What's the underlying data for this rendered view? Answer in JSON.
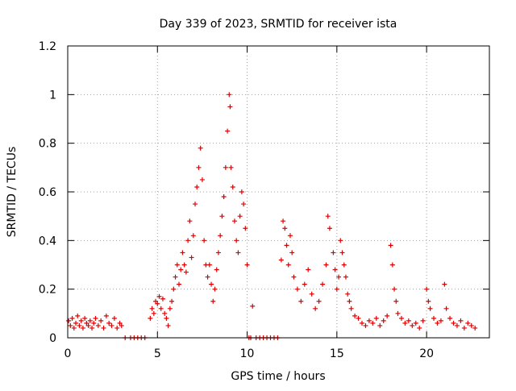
{
  "chart_data": {
    "type": "scatter",
    "title": "Day 339 of 2023, SRMTID for receiver ista",
    "xlabel": "GPS time / hours",
    "ylabel": "SRMTID / TECUs",
    "xlim": [
      0,
      23.5
    ],
    "ylim": [
      0,
      1.2
    ],
    "grid": true,
    "x_ticks": [
      0,
      5,
      10,
      15,
      20
    ],
    "x_tick_labels": [
      "0",
      "5",
      "10",
      "15",
      "20"
    ],
    "y_ticks": [
      0,
      0.2,
      0.4,
      0.6,
      0.8,
      1.0,
      1.2
    ],
    "y_tick_labels": [
      "0",
      "0.2",
      "0.4",
      "0.6",
      "0.8",
      "1",
      "1.2"
    ],
    "marker": "+",
    "marker_color": "#dd0000",
    "axis_color": "#000000",
    "grid_color": "#a0a0a0",
    "series": [
      {
        "name": "SRMTID",
        "x": [
          0.05,
          0.15,
          0.25,
          0.35,
          0.45,
          0.55,
          0.65,
          0.75,
          0.85,
          0.95,
          1.05,
          1.15,
          1.25,
          1.35,
          1.45,
          1.55,
          1.7,
          1.85,
          2.0,
          2.15,
          2.3,
          2.45,
          2.6,
          2.75,
          2.9,
          3.0,
          3.2,
          3.5,
          3.7,
          3.9,
          4.1,
          4.3,
          4.6,
          4.7,
          4.8,
          4.9,
          5.0,
          5.1,
          5.2,
          5.3,
          5.4,
          5.5,
          5.6,
          5.7,
          5.8,
          5.9,
          6.0,
          6.1,
          6.2,
          6.3,
          6.4,
          6.5,
          6.6,
          6.7,
          6.8,
          6.9,
          7.0,
          7.1,
          7.2,
          7.3,
          7.4,
          7.5,
          7.6,
          7.7,
          7.8,
          7.9,
          8.0,
          8.1,
          8.2,
          8.3,
          8.4,
          8.5,
          8.6,
          8.7,
          8.8,
          8.9,
          9.0,
          9.05,
          9.1,
          9.2,
          9.3,
          9.4,
          9.5,
          9.6,
          9.7,
          9.8,
          9.9,
          10.0,
          10.1,
          10.2,
          10.3,
          10.5,
          10.7,
          10.9,
          11.1,
          11.3,
          11.5,
          11.7,
          11.9,
          12.0,
          12.1,
          12.2,
          12.3,
          12.4,
          12.5,
          12.6,
          12.8,
          13.0,
          13.2,
          13.4,
          13.6,
          13.8,
          14.0,
          14.2,
          14.4,
          14.5,
          14.6,
          14.8,
          14.9,
          15.0,
          15.1,
          15.2,
          15.3,
          15.4,
          15.5,
          15.6,
          15.7,
          15.8,
          16.0,
          16.2,
          16.4,
          16.6,
          16.8,
          17.0,
          17.2,
          17.4,
          17.6,
          17.8,
          18.0,
          18.1,
          18.2,
          18.3,
          18.4,
          18.6,
          18.8,
          19.0,
          19.2,
          19.4,
          19.6,
          19.8,
          20.0,
          20.1,
          20.2,
          20.4,
          20.6,
          20.8,
          21.0,
          21.1,
          21.3,
          21.5,
          21.7,
          21.9,
          22.1,
          22.3,
          22.5,
          22.7
        ],
        "y": [
          0.07,
          0.05,
          0.08,
          0.04,
          0.06,
          0.09,
          0.05,
          0.07,
          0.04,
          0.08,
          0.06,
          0.05,
          0.07,
          0.04,
          0.06,
          0.08,
          0.05,
          0.07,
          0.04,
          0.09,
          0.06,
          0.05,
          0.08,
          0.04,
          0.06,
          0.05,
          0.0,
          0.0,
          0.0,
          0.0,
          0.0,
          0.0,
          0.08,
          0.12,
          0.1,
          0.15,
          0.14,
          0.17,
          0.12,
          0.16,
          0.1,
          0.08,
          0.05,
          0.12,
          0.15,
          0.2,
          0.25,
          0.3,
          0.22,
          0.28,
          0.35,
          0.3,
          0.27,
          0.4,
          0.48,
          0.33,
          0.42,
          0.55,
          0.62,
          0.7,
          0.78,
          0.65,
          0.4,
          0.3,
          0.25,
          0.3,
          0.22,
          0.15,
          0.2,
          0.28,
          0.35,
          0.42,
          0.5,
          0.58,
          0.7,
          0.85,
          1.0,
          0.95,
          0.7,
          0.62,
          0.48,
          0.4,
          0.35,
          0.5,
          0.6,
          0.55,
          0.45,
          0.3,
          0.0,
          0.0,
          0.13,
          0.0,
          0.0,
          0.0,
          0.0,
          0.0,
          0.0,
          0.0,
          0.32,
          0.48,
          0.45,
          0.38,
          0.3,
          0.42,
          0.35,
          0.25,
          0.2,
          0.15,
          0.22,
          0.28,
          0.18,
          0.12,
          0.15,
          0.22,
          0.3,
          0.5,
          0.45,
          0.35,
          0.28,
          0.2,
          0.25,
          0.4,
          0.35,
          0.3,
          0.25,
          0.18,
          0.15,
          0.12,
          0.09,
          0.08,
          0.06,
          0.05,
          0.07,
          0.06,
          0.08,
          0.05,
          0.07,
          0.09,
          0.38,
          0.3,
          0.2,
          0.15,
          0.1,
          0.08,
          0.06,
          0.07,
          0.05,
          0.06,
          0.04,
          0.07,
          0.2,
          0.15,
          0.12,
          0.08,
          0.06,
          0.07,
          0.22,
          0.12,
          0.08,
          0.06,
          0.05,
          0.07,
          0.04,
          0.06,
          0.05,
          0.04
        ]
      }
    ]
  }
}
